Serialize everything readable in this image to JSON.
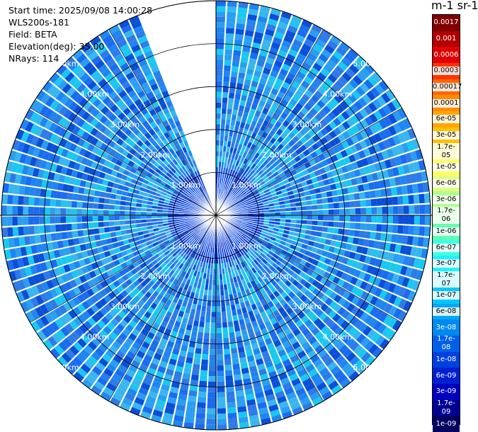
{
  "header": {
    "start_time": "Start time: 2025/09/08 14:00:28",
    "instrument": "WLS200s-181",
    "field": "Field: BETA",
    "elevation": "Elevation(deg): 35.00",
    "nrays": "NRays: 114"
  },
  "chart_data": {
    "type": "ppi-polar-heatmap",
    "field": "BETA",
    "elevation_deg": 35.0,
    "n_rays": 114,
    "max_range_km": 5.0,
    "range_rings_km": [
      1.0,
      2.0,
      3.0,
      4.0,
      5.0
    ],
    "ring_labels": [
      "1.00km",
      "2.00km",
      "3.00km",
      "4.00km",
      "5.00km"
    ],
    "azimuth_gridlines_deg": [
      0,
      30,
      60,
      90,
      120,
      150,
      180,
      210,
      240,
      270,
      300,
      330
    ],
    "missing_sector_deg": [
      337,
      359
    ],
    "colorbar": {
      "title": "m-1 sr-1",
      "ticks": [
        "0.0017",
        "0.001",
        "0.0006",
        "0.0003",
        "0.00017",
        "0.0001",
        "6e-05",
        "3e-05",
        "1.7e-05",
        "1e-05",
        "6e-06",
        "3e-06",
        "1.7e-06",
        "1e-06",
        "6e-07",
        "3e-07",
        "1.7e-07",
        "1e-07",
        "6e-08",
        "3e-08",
        "1.7e-08",
        "1e-08",
        "6e-09",
        "3e-09",
        "1.7e-09",
        "1e-09"
      ],
      "colors": [
        "#800000",
        "#b00000",
        "#e00000",
        "#ff3300",
        "#ff6600",
        "#ff8c00",
        "#ffa500",
        "#ffc000",
        "#ffe000",
        "#ffff66",
        "#e0ff80",
        "#b0ff90",
        "#80ff80",
        "#60ffb0",
        "#40ffe0",
        "#20f0ff",
        "#00e0ff",
        "#00c8ff",
        "#00a8f8",
        "#0088f0",
        "#0060e8",
        "#0040e0",
        "#0020d0",
        "#0000c0",
        "#000090",
        "#000060"
      ]
    },
    "typical_values": {
      "near_range": "1e-08 to 3e-08",
      "far_range": "6e-08 to 1.7e-07"
    }
  }
}
